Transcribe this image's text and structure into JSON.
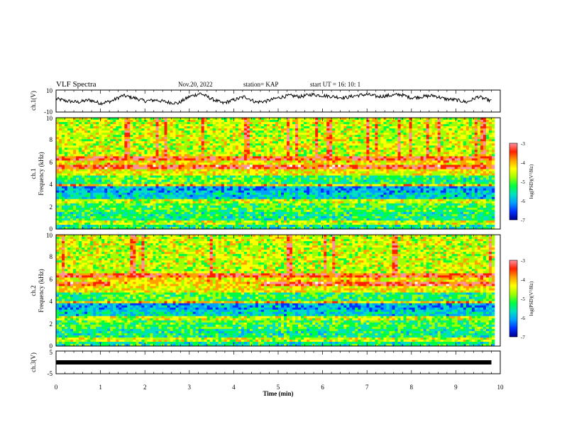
{
  "header": {
    "title": "VLF Spectra",
    "date": "Nov.20, 2022",
    "station": "station= KAP",
    "start": "start  UT =   16: 10: 1"
  },
  "chart_data": [
    {
      "type": "line",
      "panel": "ch1-waveform",
      "ylabel": "ch.1(V)",
      "ylim": [
        -10,
        10
      ],
      "yticks": [
        "10",
        "-10"
      ],
      "xlim": [
        0,
        10
      ],
      "series": [
        {
          "x": [
            0,
            0.25,
            0.5,
            0.75,
            1.0,
            1.25,
            1.5,
            1.75,
            2.0,
            2.25,
            2.5,
            2.75,
            3.0,
            3.25,
            3.5,
            3.75,
            4.0,
            4.25,
            4.5,
            4.75,
            5.0,
            5.25,
            5.5,
            5.75,
            6.0,
            6.25,
            6.5,
            6.75,
            7.0,
            7.25,
            7.5,
            7.75,
            8.0,
            8.25,
            8.5,
            8.75,
            9.0,
            9.25,
            9.5,
            9.8
          ],
          "values": [
            2,
            0,
            -1,
            1,
            -2,
            0,
            5,
            3,
            0,
            1,
            -1,
            -2,
            4,
            7,
            2,
            -2,
            1,
            4,
            -1,
            0,
            3,
            5,
            4,
            6,
            5,
            4,
            3,
            5,
            6,
            4,
            5,
            6,
            3,
            4,
            5,
            2,
            1,
            -1,
            4,
            0
          ]
        }
      ]
    },
    {
      "type": "heatmap",
      "panel": "ch1-spectrogram",
      "ylabel": "ch.1\nFrequency  (kHz)",
      "ylim": [
        0,
        10
      ],
      "yticks": [
        "0",
        "2",
        "4",
        "6",
        "8",
        "10"
      ],
      "xlim": [
        0,
        10
      ],
      "colorbar": {
        "label": "log(PSD)(V²/Hz)",
        "range": [
          -7,
          -3
        ],
        "ticks": [
          "-3",
          "-4",
          "-5",
          "-6",
          "-7"
        ]
      }
    },
    {
      "type": "heatmap",
      "panel": "ch2-spectrogram",
      "ylabel": "ch.2\nFrequency  (kHz)",
      "ylim": [
        0,
        10
      ],
      "yticks": [
        "0",
        "2",
        "4",
        "6",
        "8",
        "10"
      ],
      "xlim": [
        0,
        10
      ],
      "colorbar": {
        "label": "log(PSD)(V²/Hz)",
        "range": [
          -7,
          -3
        ],
        "ticks": [
          "-3",
          "-4",
          "-5",
          "-6",
          "-7"
        ]
      }
    },
    {
      "type": "line",
      "panel": "ch3-waveform",
      "ylabel": "ch.3(V)",
      "ylim": [
        -5,
        5
      ],
      "yticks": [
        "5",
        "-5"
      ],
      "xlim": [
        0,
        10
      ],
      "xlabel": "Time  (min)",
      "xticks": [
        "0",
        "1",
        "2",
        "3",
        "4",
        "5",
        "6",
        "7",
        "8",
        "9",
        "10"
      ],
      "series": [
        {
          "x": [
            0,
            9.8
          ],
          "values": [
            -1,
            -1
          ]
        }
      ]
    }
  ],
  "colors": {
    "line": "#000000",
    "colormap": [
      "#00008c",
      "#0030ff",
      "#00a0ff",
      "#00e0c0",
      "#00ff40",
      "#a0ff00",
      "#ffff00",
      "#ffa000",
      "#ff2000",
      "#ff90a0",
      "#ffffff"
    ]
  }
}
